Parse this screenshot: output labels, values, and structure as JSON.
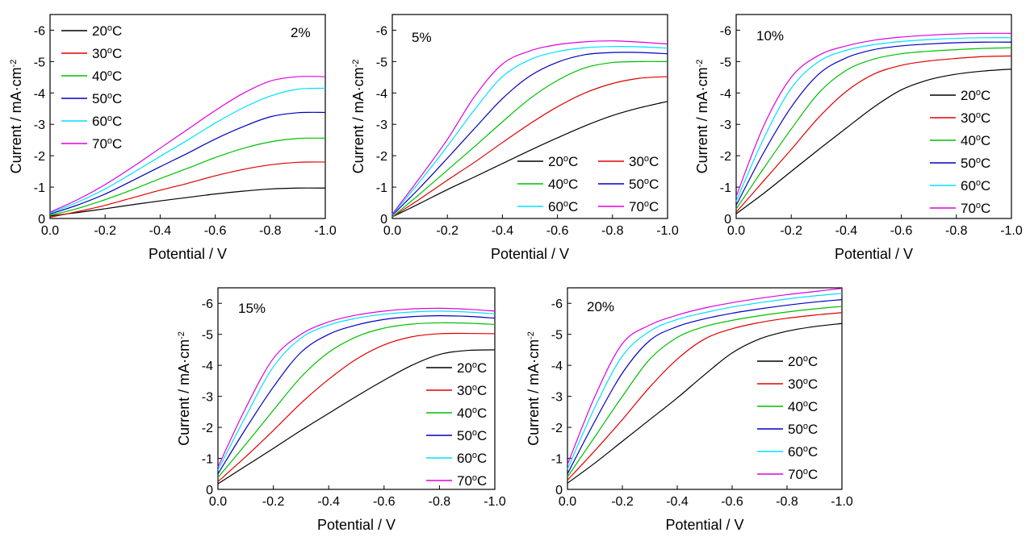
{
  "chart_data": [
    {
      "type": "line",
      "panel_label": "2%",
      "xlabel": "Potential / V",
      "ylabel": "Current / mA·cm",
      "ylabel_sup": "-2",
      "xlim": [
        0.0,
        -1.0
      ],
      "ylim": [
        0,
        -6.5
      ],
      "xticks": [
        "0.0",
        "-0.2",
        "-0.4",
        "-0.6",
        "-0.8",
        "-1.0"
      ],
      "yticks": [
        "0",
        "-1",
        "-2",
        "-3",
        "-4",
        "-5",
        "-6"
      ],
      "x": [
        0.0,
        -0.1,
        -0.2,
        -0.3,
        -0.4,
        -0.5,
        -0.6,
        -0.7,
        -0.8,
        -0.9,
        -1.0
      ],
      "series": [
        {
          "name": "20",
          "color": "#000000",
          "values": [
            -0.08,
            -0.19,
            -0.31,
            -0.44,
            -0.56,
            -0.67,
            -0.78,
            -0.87,
            -0.94,
            -0.97,
            -0.97
          ]
        },
        {
          "name": "30",
          "color": "#e00000",
          "values": [
            -0.04,
            -0.22,
            -0.42,
            -0.66,
            -0.9,
            -1.12,
            -1.36,
            -1.56,
            -1.71,
            -1.79,
            -1.8
          ]
        },
        {
          "name": "40",
          "color": "#00c000",
          "values": [
            -0.1,
            -0.32,
            -0.6,
            -0.92,
            -1.27,
            -1.6,
            -1.94,
            -2.23,
            -2.44,
            -2.55,
            -2.56
          ]
        },
        {
          "name": "50",
          "color": "#0000c0",
          "values": [
            -0.14,
            -0.43,
            -0.78,
            -1.21,
            -1.65,
            -2.08,
            -2.53,
            -2.92,
            -3.24,
            -3.37,
            -3.38
          ]
        },
        {
          "name": "60",
          "color": "#00e0ff",
          "values": [
            -0.17,
            -0.52,
            -0.94,
            -1.45,
            -1.98,
            -2.5,
            -3.04,
            -3.52,
            -3.9,
            -4.12,
            -4.15
          ]
        },
        {
          "name": "70",
          "color": "#e000e0",
          "values": [
            -0.2,
            -0.6,
            -1.08,
            -1.64,
            -2.24,
            -2.84,
            -3.44,
            -3.98,
            -4.38,
            -4.52,
            -4.52
          ]
        }
      ],
      "legend": "top-left"
    },
    {
      "type": "line",
      "panel_label": "5%",
      "xlabel": "Potential / V",
      "ylabel": "Current / mA·cm",
      "ylabel_sup": "-2",
      "xlim": [
        0.0,
        -1.0
      ],
      "ylim": [
        0,
        -6.5
      ],
      "xticks": [
        "0.0",
        "-0.2",
        "-0.4",
        "-0.6",
        "-0.8",
        "-1.0"
      ],
      "yticks": [
        "0",
        "-1",
        "-2",
        "-3",
        "-4",
        "-5",
        "-6"
      ],
      "x": [
        0.0,
        -0.1,
        -0.2,
        -0.3,
        -0.4,
        -0.5,
        -0.6,
        -0.7,
        -0.8,
        -0.9,
        -1.0
      ],
      "series": [
        {
          "name": "20",
          "color": "#000000",
          "values": [
            -0.05,
            -0.48,
            -0.92,
            -1.33,
            -1.75,
            -2.17,
            -2.57,
            -2.95,
            -3.28,
            -3.53,
            -3.73
          ]
        },
        {
          "name": "30",
          "color": "#e00000",
          "values": [
            -0.05,
            -0.62,
            -1.22,
            -1.8,
            -2.42,
            -3.02,
            -3.56,
            -4.0,
            -4.3,
            -4.47,
            -4.52
          ]
        },
        {
          "name": "40",
          "color": "#00c000",
          "values": [
            -0.05,
            -0.78,
            -1.54,
            -2.3,
            -3.08,
            -3.82,
            -4.4,
            -4.8,
            -4.97,
            -5.0,
            -5.0
          ]
        },
        {
          "name": "50",
          "color": "#0000c0",
          "values": [
            -0.1,
            -0.98,
            -1.92,
            -2.88,
            -3.82,
            -4.54,
            -4.98,
            -5.22,
            -5.29,
            -5.29,
            -5.25
          ]
        },
        {
          "name": "60",
          "color": "#00e0ff",
          "values": [
            -0.12,
            -1.18,
            -2.3,
            -3.48,
            -4.52,
            -5.06,
            -5.32,
            -5.44,
            -5.48,
            -5.47,
            -5.43
          ]
        },
        {
          "name": "70",
          "color": "#e000e0",
          "values": [
            -0.14,
            -1.3,
            -2.52,
            -3.9,
            -4.92,
            -5.34,
            -5.54,
            -5.63,
            -5.66,
            -5.62,
            -5.56
          ]
        }
      ],
      "legend": "bottom-right"
    },
    {
      "type": "line",
      "panel_label": "10%",
      "xlabel": "Potential / V",
      "ylabel": "Current / mA·cm",
      "ylabel_sup": "-2",
      "xlim": [
        0.0,
        -1.0
      ],
      "ylim": [
        0,
        -6.5
      ],
      "xticks": [
        "0.0",
        "-0.2",
        "-0.4",
        "-0.6",
        "-0.8",
        "-1.0"
      ],
      "yticks": [
        "0",
        "-1",
        "-2",
        "-3",
        "-4",
        "-5",
        "-6"
      ],
      "x": [
        0.0,
        -0.1,
        -0.2,
        -0.3,
        -0.4,
        -0.5,
        -0.6,
        -0.7,
        -0.8,
        -0.9,
        -1.0
      ],
      "series": [
        {
          "name": "20",
          "color": "#000000",
          "values": [
            -0.15,
            -0.8,
            -1.5,
            -2.2,
            -2.88,
            -3.55,
            -4.1,
            -4.42,
            -4.6,
            -4.7,
            -4.76
          ]
        },
        {
          "name": "30",
          "color": "#e00000",
          "values": [
            -0.2,
            -1.2,
            -2.2,
            -3.22,
            -4.05,
            -4.6,
            -4.88,
            -5.02,
            -5.1,
            -5.16,
            -5.18
          ]
        },
        {
          "name": "40",
          "color": "#00c000",
          "values": [
            -0.3,
            -1.6,
            -2.85,
            -4.0,
            -4.72,
            -5.08,
            -5.25,
            -5.33,
            -5.38,
            -5.42,
            -5.44
          ]
        },
        {
          "name": "50",
          "color": "#0000c0",
          "values": [
            -0.42,
            -2.1,
            -3.55,
            -4.6,
            -5.12,
            -5.38,
            -5.5,
            -5.56,
            -5.6,
            -5.62,
            -5.62
          ]
        },
        {
          "name": "60",
          "color": "#00e0ff",
          "values": [
            -0.55,
            -2.55,
            -4.15,
            -5.0,
            -5.36,
            -5.54,
            -5.64,
            -5.7,
            -5.74,
            -5.76,
            -5.76
          ]
        },
        {
          "name": "70",
          "color": "#e000e0",
          "values": [
            -0.7,
            -2.95,
            -4.5,
            -5.2,
            -5.5,
            -5.68,
            -5.78,
            -5.84,
            -5.88,
            -5.9,
            -5.9
          ]
        }
      ],
      "legend": "bottom-right"
    },
    {
      "type": "line",
      "panel_label": "15%",
      "xlabel": "Potential / V",
      "ylabel": "Current / mA·cm",
      "ylabel_sup": "-2",
      "xlim": [
        0.0,
        -1.0
      ],
      "ylim": [
        0,
        -6.5
      ],
      "xticks": [
        "0.0",
        "-0.2",
        "-0.4",
        "-0.6",
        "-0.8",
        "-1.0"
      ],
      "yticks": [
        "0",
        "-1",
        "-2",
        "-3",
        "-4",
        "-5",
        "-6"
      ],
      "x": [
        0.0,
        -0.1,
        -0.2,
        -0.3,
        -0.4,
        -0.5,
        -0.6,
        -0.7,
        -0.8,
        -0.9,
        -1.0
      ],
      "series": [
        {
          "name": "20",
          "color": "#000000",
          "values": [
            -0.18,
            -0.75,
            -1.32,
            -1.9,
            -2.45,
            -3.0,
            -3.52,
            -4.0,
            -4.35,
            -4.48,
            -4.5
          ]
        },
        {
          "name": "30",
          "color": "#e00000",
          "values": [
            -0.25,
            -1.05,
            -1.9,
            -2.78,
            -3.55,
            -4.2,
            -4.66,
            -4.92,
            -5.02,
            -5.03,
            -5.02
          ]
        },
        {
          "name": "40",
          "color": "#00c000",
          "values": [
            -0.38,
            -1.45,
            -2.55,
            -3.62,
            -4.42,
            -4.92,
            -5.2,
            -5.33,
            -5.37,
            -5.36,
            -5.32
          ]
        },
        {
          "name": "50",
          "color": "#0000c0",
          "values": [
            -0.5,
            -1.95,
            -3.3,
            -4.42,
            -5.0,
            -5.3,
            -5.48,
            -5.57,
            -5.6,
            -5.58,
            -5.52
          ]
        },
        {
          "name": "60",
          "color": "#00e0ff",
          "values": [
            -0.62,
            -2.35,
            -3.95,
            -4.88,
            -5.3,
            -5.52,
            -5.65,
            -5.72,
            -5.75,
            -5.72,
            -5.66
          ]
        },
        {
          "name": "70",
          "color": "#e000e0",
          "values": [
            -0.72,
            -2.62,
            -4.22,
            -5.0,
            -5.4,
            -5.62,
            -5.75,
            -5.82,
            -5.84,
            -5.81,
            -5.75
          ]
        }
      ],
      "legend": "bottom-right"
    },
    {
      "type": "line",
      "panel_label": "20%",
      "xlabel": "Potential / V",
      "ylabel": "Current / mA·cm",
      "ylabel_sup": "-2",
      "xlim": [
        0.0,
        -1.0
      ],
      "ylim": [
        0,
        -6.5
      ],
      "xticks": [
        "0.0",
        "-0.2",
        "-0.4",
        "-0.6",
        "-0.8",
        "-1.0"
      ],
      "yticks": [
        "0",
        "-1",
        "-2",
        "-3",
        "-4",
        "-5",
        "-6"
      ],
      "x": [
        0.0,
        -0.1,
        -0.2,
        -0.3,
        -0.4,
        -0.5,
        -0.6,
        -0.7,
        -0.8,
        -0.9,
        -1.0
      ],
      "series": [
        {
          "name": "20",
          "color": "#000000",
          "values": [
            -0.2,
            -0.85,
            -1.55,
            -2.25,
            -2.95,
            -3.7,
            -4.4,
            -4.85,
            -5.1,
            -5.25,
            -5.35
          ]
        },
        {
          "name": "30",
          "color": "#e00000",
          "values": [
            -0.3,
            -1.25,
            -2.25,
            -3.3,
            -4.2,
            -4.85,
            -5.18,
            -5.38,
            -5.52,
            -5.62,
            -5.7
          ]
        },
        {
          "name": "40",
          "color": "#00c000",
          "values": [
            -0.4,
            -1.7,
            -3.0,
            -4.2,
            -4.9,
            -5.25,
            -5.45,
            -5.6,
            -5.72,
            -5.82,
            -5.9
          ]
        },
        {
          "name": "50",
          "color": "#0000c0",
          "values": [
            -0.5,
            -2.2,
            -3.75,
            -4.8,
            -5.25,
            -5.5,
            -5.68,
            -5.82,
            -5.94,
            -6.04,
            -6.12
          ]
        },
        {
          "name": "60",
          "color": "#00e0ff",
          "values": [
            -0.65,
            -2.65,
            -4.3,
            -5.1,
            -5.48,
            -5.7,
            -5.88,
            -6.02,
            -6.14,
            -6.24,
            -6.32
          ]
        },
        {
          "name": "70",
          "color": "#e000e0",
          "values": [
            -0.8,
            -3.0,
            -4.7,
            -5.3,
            -5.62,
            -5.85,
            -6.02,
            -6.16,
            -6.28,
            -6.38,
            -6.48
          ]
        }
      ],
      "legend": "right"
    }
  ]
}
